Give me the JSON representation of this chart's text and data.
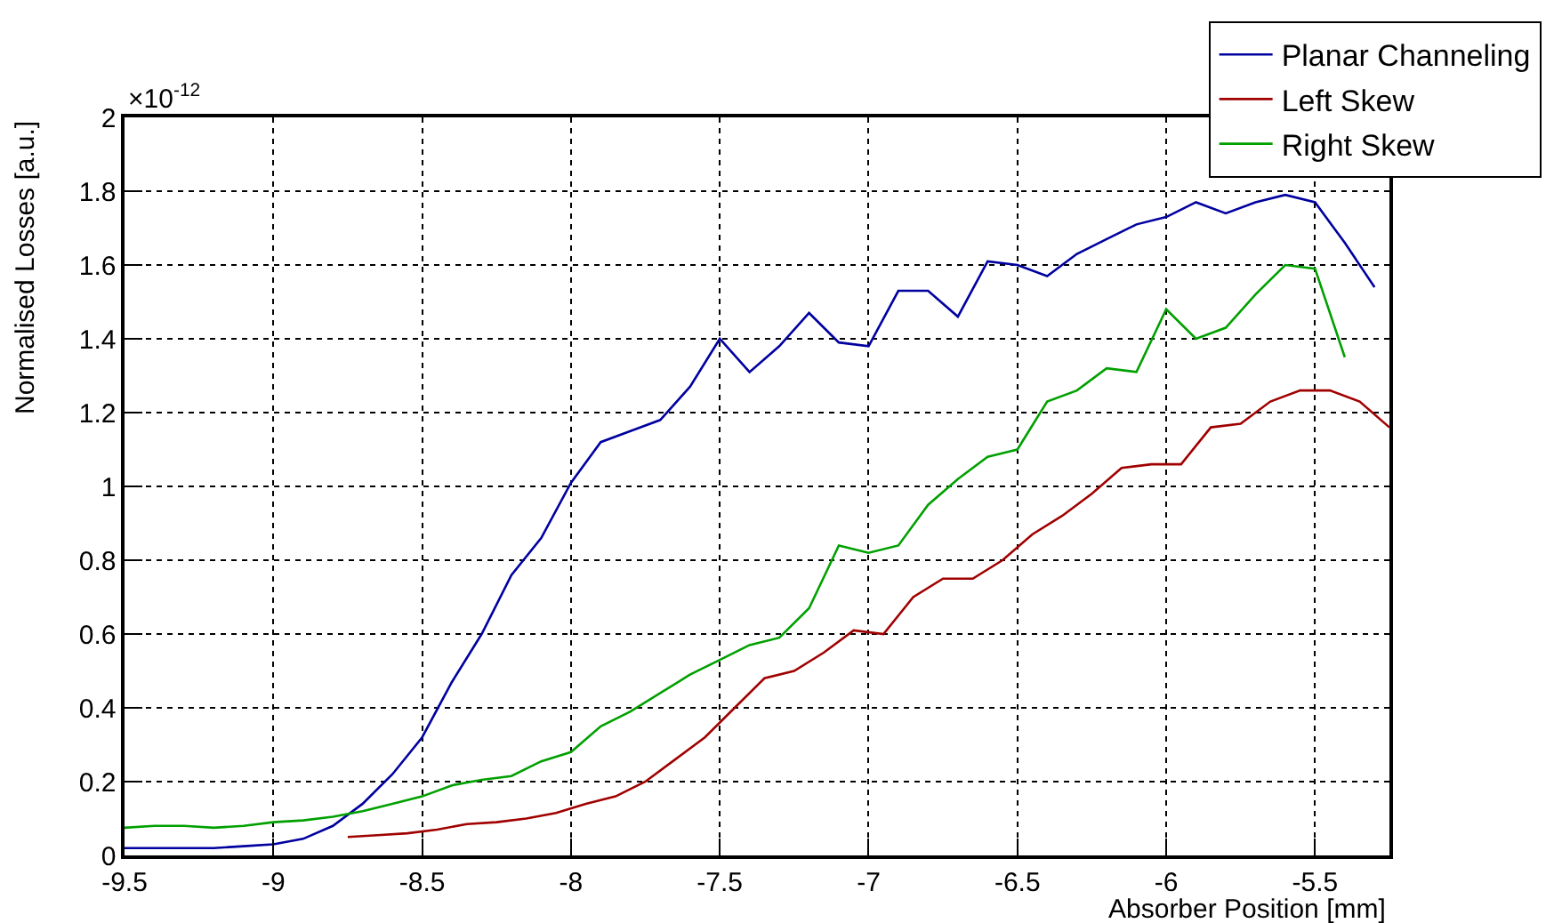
{
  "chart_data": {
    "type": "line",
    "xlabel": "Absorber Position [mm]",
    "ylabel": "Normalised Losses [a.u.]",
    "annotations": [
      "×10$^{-12}$"
    ],
    "series": [
      {
        "name": "Planar Channeling",
        "color": "#0000a0",
        "x": [
          -9.5,
          -9.4,
          -9.3,
          -9.2,
          -9.1,
          -9.0,
          -8.9,
          -8.8,
          -8.7,
          -8.6,
          -8.5,
          -8.4,
          -8.3,
          -8.2,
          -8.1,
          -8.0,
          -7.9,
          -7.8,
          -7.7,
          -7.6,
          -7.5,
          -7.4,
          -7.3,
          -7.2,
          -7.1,
          -7.0,
          -6.9,
          -6.8,
          -6.7,
          -6.6,
          -6.5,
          -6.4,
          -6.3,
          -6.2,
          -6.1,
          -6.0,
          -5.9,
          -5.8,
          -5.7,
          -5.6,
          -5.5,
          -5.4,
          -5.3
        ],
        "values": [
          0.02,
          0.02,
          0.02,
          0.02,
          0.025,
          0.03,
          0.045,
          0.08,
          0.14,
          0.22,
          0.32,
          0.47,
          0.6,
          0.76,
          0.86,
          1.01,
          1.12,
          1.15,
          1.18,
          1.27,
          1.4,
          1.31,
          1.38,
          1.47,
          1.39,
          1.38,
          1.53,
          1.53,
          1.46,
          1.61,
          1.6,
          1.57,
          1.63,
          1.67,
          1.71,
          1.73,
          1.77,
          1.74,
          1.77,
          1.79,
          1.77,
          1.66,
          1.54
        ]
      },
      {
        "name": "Left Skew",
        "color": "#a00000",
        "x": [
          -8.75,
          -8.65,
          -8.55,
          -8.45,
          -8.35,
          -8.25,
          -8.15,
          -8.05,
          -7.95,
          -7.85,
          -7.75,
          -7.65,
          -7.55,
          -7.45,
          -7.35,
          -7.25,
          -7.15,
          -7.05,
          -6.95,
          -6.85,
          -6.75,
          -6.65,
          -6.55,
          -6.45,
          -6.35,
          -6.25,
          -6.15,
          -6.05,
          -5.95,
          -5.85,
          -5.75,
          -5.65,
          -5.55,
          -5.45,
          -5.35,
          -5.25
        ],
        "values": [
          0.05,
          0.055,
          0.06,
          0.07,
          0.085,
          0.09,
          0.1,
          0.115,
          0.14,
          0.16,
          0.2,
          0.26,
          0.32,
          0.4,
          0.48,
          0.5,
          0.55,
          0.61,
          0.6,
          0.7,
          0.75,
          0.75,
          0.8,
          0.87,
          0.92,
          0.98,
          1.05,
          1.06,
          1.06,
          1.16,
          1.17,
          1.23,
          1.26,
          1.26,
          1.23,
          1.16
        ]
      },
      {
        "name": "Right Skew",
        "color": "#00a000",
        "x": [
          -9.5,
          -9.4,
          -9.3,
          -9.2,
          -9.1,
          -9.0,
          -8.9,
          -8.8,
          -8.7,
          -8.6,
          -8.5,
          -8.4,
          -8.3,
          -8.2,
          -8.1,
          -8.0,
          -7.9,
          -7.8,
          -7.7,
          -7.6,
          -7.5,
          -7.4,
          -7.3,
          -7.2,
          -7.1,
          -7.0,
          -6.9,
          -6.8,
          -6.7,
          -6.6,
          -6.5,
          -6.4,
          -6.3,
          -6.2,
          -6.1,
          -6.0,
          -5.9,
          -5.8,
          -5.7,
          -5.6,
          -5.5,
          -5.4
        ],
        "values": [
          0.075,
          0.08,
          0.08,
          0.075,
          0.08,
          0.09,
          0.095,
          0.105,
          0.12,
          0.14,
          0.16,
          0.19,
          0.205,
          0.215,
          0.255,
          0.28,
          0.35,
          0.39,
          0.44,
          0.49,
          0.53,
          0.57,
          0.59,
          0.67,
          0.84,
          0.82,
          0.84,
          0.95,
          1.02,
          1.08,
          1.1,
          1.23,
          1.26,
          1.32,
          1.31,
          1.48,
          1.4,
          1.43,
          1.52,
          1.6,
          1.59,
          1.35
        ]
      }
    ],
    "xlim": [
      -9.5,
      -5.25
    ],
    "xticks": [
      -9.5,
      -9,
      -8.5,
      -8,
      -7.5,
      -7,
      -6.5,
      -6,
      -5.5
    ],
    "ylim": [
      0,
      2
    ],
    "yticks": [
      0,
      0.2,
      0.4,
      0.6,
      0.8,
      1,
      1.2,
      1.4,
      1.6,
      1.8,
      2
    ],
    "grid": true,
    "legend": "top right",
    "marker": "none",
    "line_style": "solid"
  }
}
